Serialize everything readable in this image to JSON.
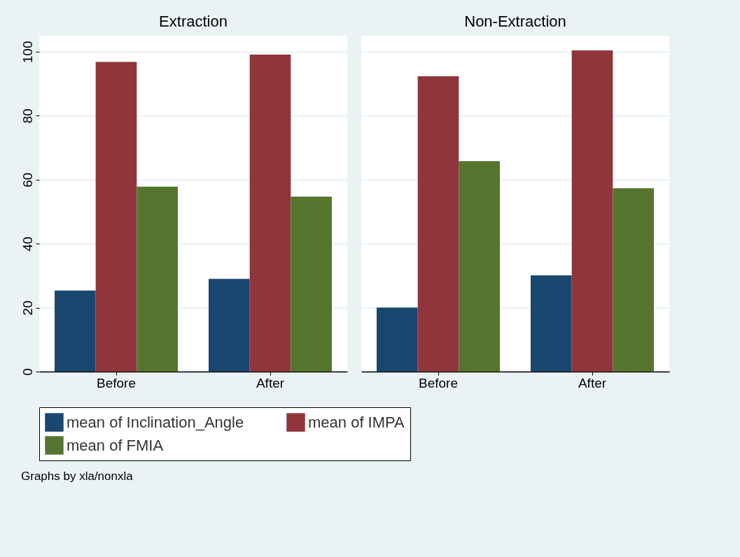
{
  "chart_data": [
    {
      "type": "bar",
      "title": "Extraction",
      "categories": [
        "Before",
        "After"
      ],
      "series": [
        {
          "name": "mean of Inclination_Angle",
          "color": "#1a476f",
          "values": [
            25.3,
            29.0
          ]
        },
        {
          "name": "mean of IMPA",
          "color": "#90353b",
          "values": [
            96.8,
            99.1
          ]
        },
        {
          "name": "mean of FMIA",
          "color": "#55752f",
          "values": [
            57.8,
            54.7
          ]
        }
      ],
      "ylim": [
        0,
        105
      ],
      "yticks": [
        0,
        20,
        40,
        60,
        80,
        100
      ],
      "grid": "y",
      "legend": "bottom"
    },
    {
      "type": "bar",
      "title": "Non-Extraction",
      "categories": [
        "Before",
        "After"
      ],
      "series": [
        {
          "name": "mean of Inclination_Angle",
          "color": "#1a476f",
          "values": [
            20.0,
            30.1
          ]
        },
        {
          "name": "mean of IMPA",
          "color": "#90353b",
          "values": [
            92.3,
            100.4
          ]
        },
        {
          "name": "mean of FMIA",
          "color": "#55752f",
          "values": [
            65.8,
            57.3
          ]
        }
      ],
      "ylim": [
        0,
        105
      ],
      "yticks": [
        0,
        20,
        40,
        60,
        80,
        100
      ],
      "grid": "y",
      "legend": "bottom",
      "tick_labels": "x",
      "annotations": [
        "Graphs by xla/nonxla"
      ]
    }
  ]
}
